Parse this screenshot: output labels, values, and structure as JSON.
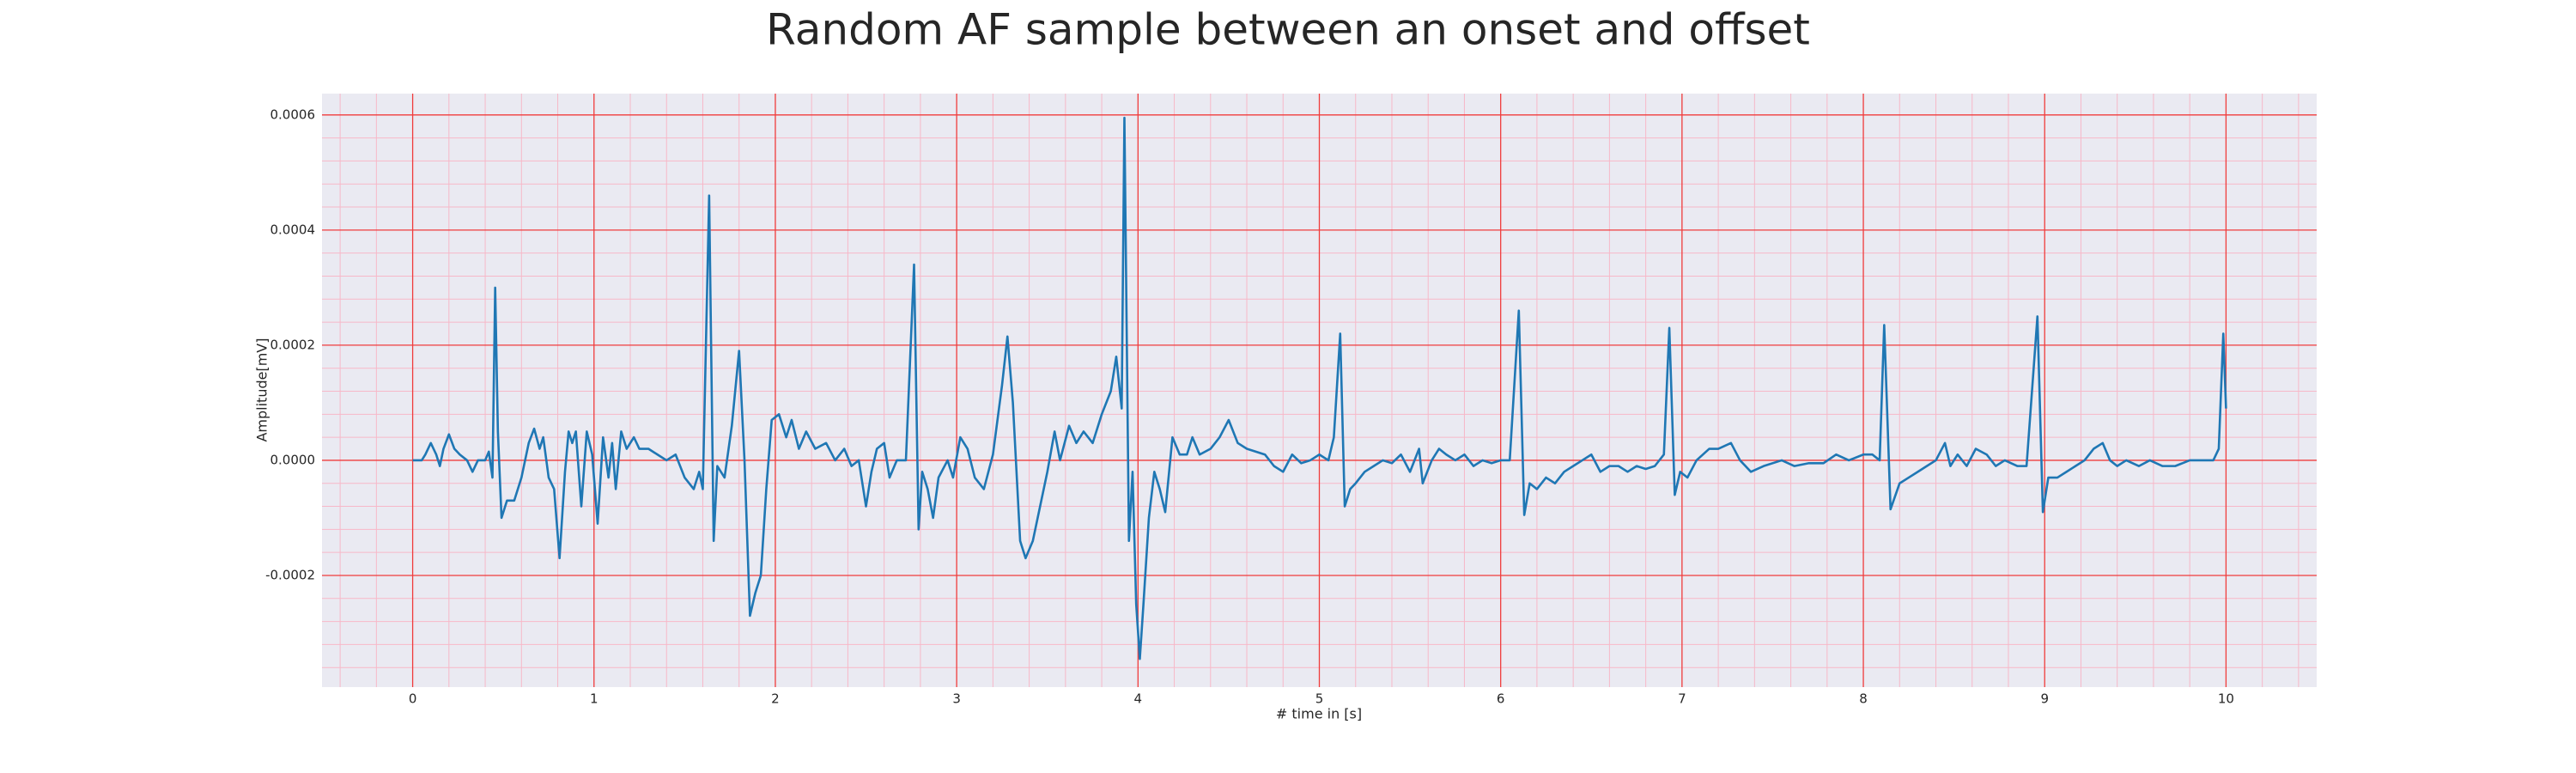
{
  "chart_data": {
    "type": "line",
    "title": "Random AF sample between an onset and offset",
    "xlabel": "# time in [s]",
    "ylabel": "Amplitude[mV]",
    "xlim": [
      -0.5,
      10.5
    ],
    "ylim": [
      -0.000394,
      0.000637
    ],
    "xticks": [
      0,
      1,
      2,
      3,
      4,
      5,
      6,
      7,
      8,
      9,
      10
    ],
    "yticks": [
      -0.0002,
      {
        "value": 0,
        "label": "0.0000"
      },
      0.0002,
      0.0004,
      0.0006
    ],
    "minor_xticks": [
      -0.4,
      -0.2,
      0.2,
      0.4,
      0.6,
      0.8,
      1.2,
      1.4,
      1.6,
      1.8,
      2.2,
      2.4,
      2.6,
      2.8,
      3.2,
      3.4,
      3.6,
      3.8,
      4.2,
      4.4,
      4.6,
      4.8,
      5.2,
      5.4,
      5.6,
      5.8,
      6.2,
      6.4,
      6.6,
      6.8,
      7.2,
      7.4,
      7.6,
      7.8,
      8.2,
      8.4,
      8.6,
      8.8,
      9.2,
      9.4,
      9.6,
      9.8,
      10.2,
      10.4
    ],
    "minor_yticks": [
      -0.00036,
      -0.00032,
      -0.00028,
      -0.00024,
      -0.00016,
      -0.00012,
      -8e-05,
      -4e-05,
      4e-05,
      8e-05,
      0.00012,
      0.00016,
      0.00024,
      0.00028,
      0.00032,
      0.00036,
      0.00044,
      0.00048,
      0.00052,
      0.00056
    ],
    "grid": true,
    "x": [
      0,
      0.05,
      0.07,
      0.1,
      0.13,
      0.15,
      0.17,
      0.2,
      0.23,
      0.26,
      0.3,
      0.33,
      0.36,
      0.4,
      0.42,
      0.44,
      0.455,
      0.47,
      0.49,
      0.52,
      0.56,
      0.6,
      0.64,
      0.67,
      0.7,
      0.72,
      0.75,
      0.78,
      0.81,
      0.84,
      0.86,
      0.88,
      0.9,
      0.93,
      0.96,
      0.99,
      1.02,
      1.05,
      1.08,
      1.1,
      1.12,
      1.15,
      1.18,
      1.22,
      1.25,
      1.3,
      1.35,
      1.4,
      1.45,
      1.5,
      1.55,
      1.58,
      1.6,
      1.635,
      1.66,
      1.68,
      1.72,
      1.76,
      1.8,
      1.83,
      1.86,
      1.89,
      1.92,
      1.95,
      1.98,
      2.02,
      2.06,
      2.09,
      2.13,
      2.17,
      2.22,
      2.28,
      2.33,
      2.38,
      2.42,
      2.46,
      2.5,
      2.53,
      2.56,
      2.6,
      2.63,
      2.67,
      2.72,
      2.765,
      2.79,
      2.81,
      2.84,
      2.87,
      2.9,
      2.95,
      2.98,
      3.02,
      3.06,
      3.1,
      3.15,
      3.2,
      3.25,
      3.28,
      3.31,
      3.35,
      3.38,
      3.42,
      3.46,
      3.5,
      3.54,
      3.57,
      3.62,
      3.66,
      3.7,
      3.75,
      3.8,
      3.85,
      3.88,
      3.91,
      3.925,
      3.95,
      3.97,
      3.99,
      4.01,
      4.03,
      4.06,
      4.09,
      4.12,
      4.15,
      4.19,
      4.23,
      4.27,
      4.3,
      4.34,
      4.4,
      4.45,
      4.5,
      4.55,
      4.6,
      4.7,
      4.75,
      4.8,
      4.85,
      4.9,
      4.95,
      5,
      5.05,
      5.08,
      5.115,
      5.14,
      5.17,
      5.2,
      5.25,
      5.3,
      5.35,
      5.4,
      5.45,
      5.5,
      5.55,
      5.57,
      5.62,
      5.66,
      5.7,
      5.75,
      5.8,
      5.85,
      5.9,
      5.95,
      6,
      6.05,
      6.1,
      6.13,
      6.16,
      6.2,
      6.25,
      6.3,
      6.35,
      6.4,
      6.45,
      6.5,
      6.55,
      6.6,
      6.65,
      6.7,
      6.75,
      6.8,
      6.85,
      6.9,
      6.93,
      6.96,
      6.99,
      7.03,
      7.08,
      7.15,
      7.2,
      7.27,
      7.32,
      7.38,
      7.45,
      7.55,
      7.62,
      7.7,
      7.78,
      7.85,
      7.92,
      8,
      8.05,
      8.09,
      8.115,
      8.15,
      8.2,
      8.25,
      8.3,
      8.35,
      8.4,
      8.45,
      8.48,
      8.52,
      8.57,
      8.62,
      8.68,
      8.73,
      8.78,
      8.85,
      8.9,
      8.96,
      8.99,
      9.02,
      9.07,
      9.12,
      9.17,
      9.22,
      9.27,
      9.32,
      9.36,
      9.4,
      9.45,
      9.52,
      9.58,
      9.65,
      9.72,
      9.8,
      9.86,
      9.93,
      9.96,
      9.985,
      10
    ],
    "series": [
      {
        "color": "#1f77b4",
        "values": [
          0,
          0,
          1e-05,
          3e-05,
          1e-05,
          -1e-05,
          2e-05,
          4.5e-05,
          2e-05,
          1e-05,
          0,
          -2e-05,
          0,
          0,
          1.5e-05,
          -3e-05,
          0.0003,
          5e-05,
          -0.0001,
          -7e-05,
          -7e-05,
          -3e-05,
          3e-05,
          5.5e-05,
          2e-05,
          4e-05,
          -3e-05,
          -5e-05,
          -0.00017,
          -2e-05,
          5e-05,
          3e-05,
          5e-05,
          -8e-05,
          5e-05,
          1e-05,
          -0.00011,
          4e-05,
          -3e-05,
          3e-05,
          -5e-05,
          5e-05,
          2e-05,
          4e-05,
          2e-05,
          2e-05,
          1e-05,
          0,
          1e-05,
          -3e-05,
          -5e-05,
          -2e-05,
          -5e-05,
          0.00046,
          -0.00014,
          -1e-05,
          -3e-05,
          6e-05,
          0.00019,
          0,
          -0.00027,
          -0.00023,
          -0.0002,
          -5e-05,
          7e-05,
          8e-05,
          4e-05,
          7e-05,
          2e-05,
          5e-05,
          2e-05,
          3e-05,
          0,
          2e-05,
          -1e-05,
          0,
          -8e-05,
          -2e-05,
          2e-05,
          3e-05,
          -3e-05,
          0,
          0,
          0.00034,
          -0.00012,
          -2e-05,
          -5e-05,
          -0.0001,
          -3e-05,
          0,
          -3e-05,
          4e-05,
          2e-05,
          -3e-05,
          -5e-05,
          1e-05,
          0.00013,
          0.000215,
          0.0001,
          -0.00014,
          -0.00017,
          -0.00014,
          -8e-05,
          -2e-05,
          5e-05,
          0,
          6e-05,
          3e-05,
          5e-05,
          3e-05,
          8e-05,
          0.00012,
          0.00018,
          9e-05,
          0.000595,
          -0.00014,
          -2e-05,
          -0.00025,
          -0.000345,
          -0.00025,
          -0.0001,
          -2e-05,
          -5e-05,
          -9e-05,
          4e-05,
          1e-05,
          1e-05,
          4e-05,
          1e-05,
          2e-05,
          4e-05,
          7e-05,
          3e-05,
          2e-05,
          1e-05,
          -1e-05,
          -2e-05,
          1e-05,
          -5e-06,
          0,
          1e-05,
          0,
          4e-05,
          0.00022,
          -8e-05,
          -5e-05,
          -4e-05,
          -2e-05,
          -1e-05,
          0,
          -5e-06,
          1e-05,
          -2e-05,
          2e-05,
          -4e-05,
          0,
          2e-05,
          1e-05,
          0,
          1e-05,
          -1e-05,
          0,
          -5e-06,
          0,
          0,
          0.00026,
          -9.5e-05,
          -4e-05,
          -5e-05,
          -3e-05,
          -4e-05,
          -2e-05,
          -1e-05,
          0,
          1e-05,
          -2e-05,
          -1e-05,
          -1e-05,
          -2e-05,
          -1e-05,
          -1.5e-05,
          -1e-05,
          1e-05,
          0.00023,
          -6e-05,
          -2e-05,
          -3e-05,
          0,
          2e-05,
          2e-05,
          3e-05,
          0,
          -2e-05,
          -1e-05,
          0,
          -1e-05,
          -5e-06,
          -5e-06,
          1e-05,
          0,
          1e-05,
          1e-05,
          0,
          0.000235,
          -8.5e-05,
          -4e-05,
          -3e-05,
          -2e-05,
          -1e-05,
          0,
          3e-05,
          -1e-05,
          1e-05,
          -1e-05,
          2e-05,
          1e-05,
          -1e-05,
          0,
          -1e-05,
          -1e-05,
          0.00025,
          -9e-05,
          -3e-05,
          -3e-05,
          -2e-05,
          -1e-05,
          0,
          2e-05,
          3e-05,
          0,
          -1e-05,
          0,
          -1e-05,
          0,
          -1e-05,
          -1e-05,
          0,
          0,
          0,
          2e-05,
          0.00022,
          9e-05
        ]
      }
    ]
  }
}
